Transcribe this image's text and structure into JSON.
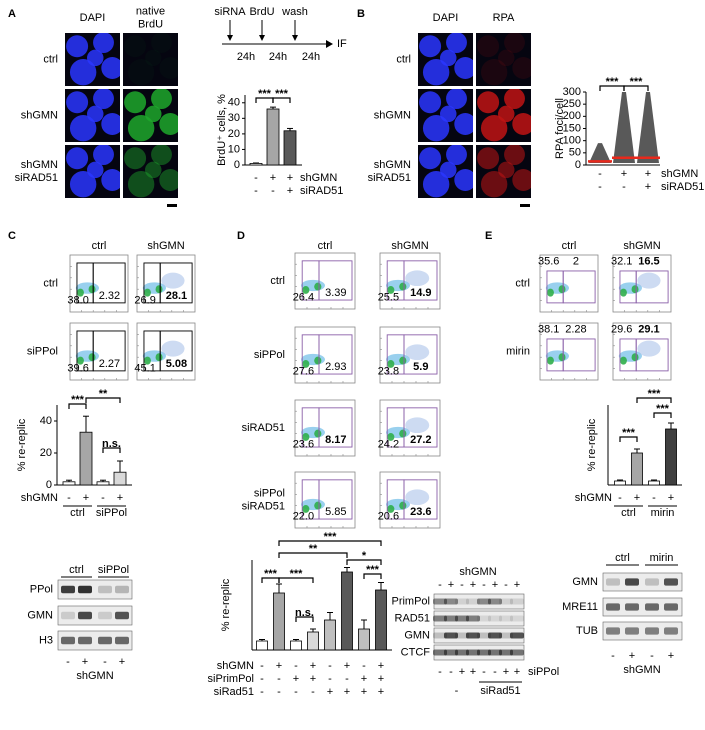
{
  "panels": {
    "A": {
      "label": "A",
      "image_columns": [
        [
          "DAPI"
        ],
        [
          "native",
          "BrdU"
        ]
      ],
      "image_rows": [
        [
          "ctrl"
        ],
        [
          "shGMN"
        ],
        [
          "shGMN",
          "siRAD51"
        ]
      ],
      "timeline": {
        "steps": [
          "siRNA",
          "BrdU",
          "wash"
        ],
        "durations": [
          "24h",
          "24h",
          "24h"
        ],
        "end": "IF"
      },
      "chart": {
        "type": "bar",
        "ylabel": "BrdU⁺ cells, %",
        "ylim": [
          0,
          45
        ],
        "yticks": [
          0,
          10,
          20,
          30,
          40
        ],
        "values": [
          1,
          36,
          22
        ],
        "errors": [
          0.3,
          1.2,
          1.5
        ],
        "colors": [
          "#ffffff",
          "#a6a6a6",
          "#595959"
        ],
        "significance": [
          "***",
          "***"
        ],
        "conditions": [
          {
            "name": "shGMN",
            "signs": [
              "-",
              "+",
              "+"
            ]
          },
          {
            "name": "siRAD51",
            "signs": [
              "-",
              "-",
              "+"
            ]
          }
        ]
      }
    },
    "B": {
      "label": "B",
      "image_columns": [
        [
          "DAPI"
        ],
        [
          "RPA"
        ]
      ],
      "image_rows": [
        [
          "ctrl"
        ],
        [
          "shGMN"
        ],
        [
          "shGMN",
          "siRAD51"
        ]
      ],
      "chart": {
        "type": "scatter",
        "ylabel": "RPA foci/cell",
        "ylim": [
          0,
          300
        ],
        "yticks": [
          0,
          50,
          100,
          150,
          200,
          250,
          300
        ],
        "medians": [
          15,
          30,
          30
        ],
        "maxima": [
          90,
          300,
          300
        ],
        "color": "#222222",
        "median_color": "#e8291c",
        "significance": [
          "***",
          "***"
        ],
        "conditions": [
          {
            "name": "shGMN",
            "signs": [
              "-",
              "+",
              "+"
            ]
          },
          {
            "name": "siRAD51",
            "signs": [
              "-",
              "-",
              "+"
            ]
          }
        ]
      }
    },
    "C": {
      "label": "C",
      "flow": {
        "columns": [
          "ctrl",
          "shGMN"
        ],
        "rows": [
          [
            "ctrl"
          ],
          [
            "siPPol"
          ]
        ],
        "gate_color": "#000000",
        "gates": [
          [
            [
              "38.0",
              "2.32"
            ],
            [
              "26.9",
              {
                "text": "28.1",
                "style": "red"
              }
            ]
          ],
          [
            [
              "39.6",
              "2.27"
            ],
            [
              "45.1",
              {
                "text": "5.08",
                "style": "bold"
              }
            ]
          ]
        ]
      },
      "chart": {
        "type": "bar",
        "ylabel": "% re-replic",
        "ylim": [
          0,
          50
        ],
        "yticks": [
          0,
          20,
          40
        ],
        "values": [
          2,
          33,
          2,
          8
        ],
        "errors": [
          1,
          10,
          1,
          7
        ],
        "colors": [
          "#ffffff",
          "#a6a6a6",
          "#ffffff",
          "#d9d9d9"
        ],
        "significance": [
          "***",
          "**",
          "n.s."
        ],
        "conditions": [
          {
            "name": "shGMN",
            "signs": [
              "-",
              "+",
              "-",
              "+"
            ]
          }
        ],
        "groups": [
          "ctrl",
          "siPPol"
        ]
      },
      "blot": {
        "groups": [
          "ctrl",
          "siPPol"
        ],
        "rows": [
          "PPol",
          "GMN",
          "H3"
        ],
        "signs": [
          "-",
          "+",
          "-",
          "+"
        ],
        "treatment": "shGMN"
      }
    },
    "D": {
      "label": "D",
      "flow": {
        "columns": [
          "ctrl",
          "shGMN"
        ],
        "rows": [
          [
            "ctrl"
          ],
          [
            "siPPol"
          ],
          [
            "siRAD51"
          ],
          [
            "siPPol",
            "siRAD51"
          ]
        ],
        "gate_color": "#8a5fa8",
        "gates": [
          [
            [
              "26.4",
              "3.39"
            ],
            [
              "25.5",
              {
                "text": "14.9",
                "style": "red"
              }
            ]
          ],
          [
            [
              "27.6",
              "2.93"
            ],
            [
              "23.8",
              {
                "text": "5.9",
                "style": "bold"
              }
            ]
          ],
          [
            [
              "23.6",
              {
                "text": "8.17",
                "style": "red"
              }
            ],
            [
              "24.2",
              {
                "text": "27.2",
                "style": "red"
              }
            ]
          ],
          [
            [
              "22.0",
              "5.85"
            ],
            [
              "20.6",
              {
                "text": "23.6",
                "style": "red"
              }
            ]
          ]
        ]
      },
      "chart": {
        "type": "bar",
        "ylabel": "% re-replic",
        "ylim": [
          0,
          30
        ],
        "values": [
          3,
          19,
          3,
          6,
          10,
          26,
          7,
          20
        ],
        "errors": [
          0.5,
          3,
          0.5,
          1,
          2.5,
          1.5,
          3,
          2.5
        ],
        "colors": [
          "#ffffff",
          "#a6a6a6",
          "#ffffff",
          "#d9d9d9",
          "#bfbfbf",
          "#595959",
          "#bfbfbf",
          "#595959"
        ],
        "significance": [
          "***",
          "***",
          "n.s.",
          "**",
          "***",
          "*",
          "***"
        ],
        "conditions": [
          {
            "name": "shGMN",
            "signs": [
              "-",
              "+",
              "-",
              "+",
              "-",
              "+",
              "-",
              "+"
            ]
          },
          {
            "name": "siPrimPol",
            "signs": [
              "-",
              "-",
              "+",
              "+",
              "-",
              "-",
              "+",
              "+"
            ]
          },
          {
            "name": "siRad51",
            "signs": [
              "-",
              "-",
              "-",
              "-",
              "+",
              "+",
              "+",
              "+"
            ]
          }
        ]
      },
      "blot": {
        "title": "shGMN",
        "rows": [
          "PrimPol",
          "RAD51",
          "GMN",
          "CTCF"
        ],
        "top_signs": [
          "-",
          "+",
          "-",
          "+",
          "-",
          "+",
          "-",
          "+"
        ],
        "bottom": {
          "name": "siPPol",
          "signs": [
            "-",
            "-",
            "+",
            "+",
            "-",
            "-",
            "+",
            "+"
          ]
        },
        "groups": [
          "-",
          "siRad51"
        ]
      }
    },
    "E": {
      "label": "E",
      "flow": {
        "columns": [
          "ctrl",
          "shGMN"
        ],
        "rows": [
          [
            "ctrl"
          ],
          [
            "mirin"
          ]
        ],
        "gate_color": "#8a5fa8",
        "gates": [
          [
            [
              "35.6",
              "2"
            ],
            [
              "32.1",
              {
                "text": "16.5",
                "style": "red"
              }
            ]
          ],
          [
            [
              "38.1",
              "2.28"
            ],
            [
              "29.6",
              {
                "text": "29.1",
                "style": "red"
              }
            ]
          ]
        ]
      },
      "chart": {
        "type": "bar",
        "ylabel": "% re-replic",
        "ylim": [
          0,
          40
        ],
        "values": [
          2,
          16,
          2,
          28
        ],
        "errors": [
          0.5,
          2,
          0.5,
          3
        ],
        "colors": [
          "#ffffff",
          "#a6a6a6",
          "#ffffff",
          "#404040"
        ],
        "significance": [
          "***",
          "***",
          "***"
        ],
        "conditions": [
          {
            "name": "shGMN",
            "signs": [
              "-",
              "+",
              "-",
              "+"
            ]
          }
        ],
        "groups": [
          "ctrl",
          "mirin"
        ]
      },
      "blot": {
        "groups": [
          "ctrl",
          "mirin"
        ],
        "rows": [
          "GMN",
          "MRE11",
          "TUB"
        ],
        "signs": [
          "-",
          "+",
          "-",
          "+"
        ],
        "treatment": "shGMN"
      }
    }
  }
}
